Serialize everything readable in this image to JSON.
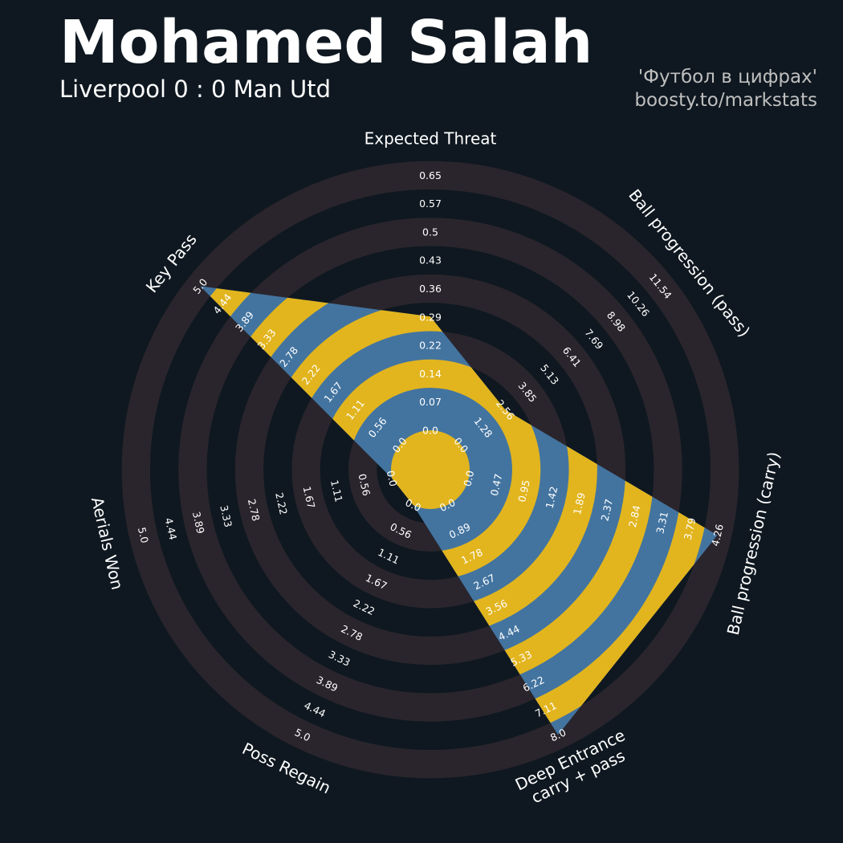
{
  "header": {
    "title": "Mohamed Salah",
    "subtitle": "Liverpool 0 : 0 Man Utd",
    "credit_line1": "'Футбол в цифрах'",
    "credit_line2": "boosty.to/markstats"
  },
  "colors": {
    "background": "#0f1820",
    "ring_band": "#2a252c",
    "polygon_blue": "#4374a0",
    "polygon_gold": "#e2b51e",
    "label": "#ffffff"
  },
  "chart_data": {
    "type": "radar",
    "parameters": [
      {
        "name": "Expected Threat",
        "value": 0.29,
        "ticks": [
          "0.0",
          "0.07",
          "0.14",
          "0.22",
          "0.29",
          "0.36",
          "0.43",
          "0.5",
          "0.57",
          "0.65"
        ]
      },
      {
        "name": "Ball progression (pass)",
        "value": 2.56,
        "ticks": [
          "0.0",
          "1.28",
          "2.56",
          "3.85",
          "5.13",
          "6.41",
          "7.69",
          "8.98",
          "10.26",
          "11.54"
        ]
      },
      {
        "name": "Ball progression (carry)",
        "value": 4.26,
        "ticks": [
          "0.0",
          "0.47",
          "0.95",
          "1.42",
          "1.89",
          "2.37",
          "2.84",
          "3.31",
          "3.79",
          "4.26"
        ]
      },
      {
        "name": "Deep Entrance\ncarry + pass",
        "value": 8.0,
        "ticks": [
          "0.0",
          "0.89",
          "1.78",
          "2.67",
          "3.56",
          "4.44",
          "5.33",
          "6.22",
          "7.11",
          "8.0"
        ]
      },
      {
        "name": "Poss Regain",
        "value": 0.0,
        "ticks": [
          "0.0",
          "0.56",
          "1.11",
          "1.67",
          "2.22",
          "2.78",
          "3.33",
          "3.89",
          "4.44",
          "5.0"
        ]
      },
      {
        "name": "Aerials Won",
        "value": 0.0,
        "ticks": [
          "0.0",
          "0.56",
          "1.11",
          "1.67",
          "2.22",
          "2.78",
          "3.33",
          "3.89",
          "4.44",
          "5.0"
        ]
      },
      {
        "name": "Key Pass",
        "value": 5.0,
        "ticks": [
          "0.0",
          "0.56",
          "1.11",
          "1.67",
          "2.22",
          "2.78",
          "3.33",
          "3.89",
          "4.44",
          "5.0"
        ]
      }
    ],
    "grid": true,
    "legend": "none"
  }
}
